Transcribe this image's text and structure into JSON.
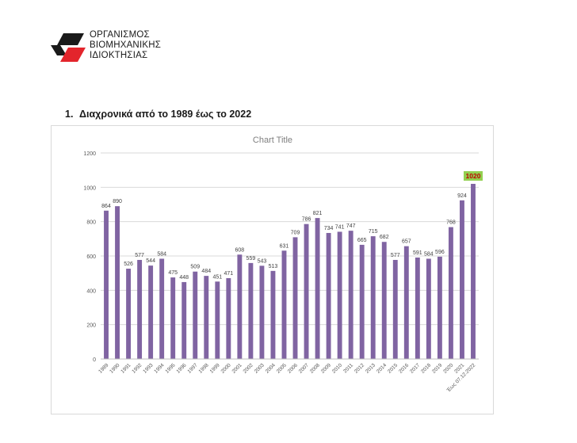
{
  "logo": {
    "lines": [
      "ΟΡΓΑΝΙΣΜΟΣ",
      "ΒΙΟΜΗΧΑΝΙΚΗΣ",
      "ΙΔΙΟΚΤΗΣΙΑΣ"
    ],
    "colors": {
      "red": "#e3252c",
      "black": "#1a1a1a"
    }
  },
  "section": {
    "number": "1.",
    "heading": "Διαχρονικά από το 1989 έως το 2022"
  },
  "chart_data": {
    "type": "bar",
    "title": "Chart Title",
    "xlabel": "",
    "ylabel": "",
    "ylim": [
      0,
      1200
    ],
    "yticks": [
      0,
      200,
      400,
      600,
      800,
      1000,
      1200
    ],
    "grid": true,
    "legend": "none",
    "bar_color": "#8064a2",
    "highlight": {
      "index": 33,
      "label_fill": "#92d050",
      "label_color": "#c00000"
    },
    "categories": [
      "1989",
      "1990",
      "1991",
      "1992",
      "1993",
      "1994",
      "1995",
      "1996",
      "1997",
      "1998",
      "1999",
      "2000",
      "2001",
      "2002",
      "2003",
      "2004",
      "2005",
      "2006",
      "2007",
      "2008",
      "2009",
      "2010",
      "2011",
      "2012",
      "2013",
      "2014",
      "2015",
      "2016",
      "2017",
      "2018",
      "2019",
      "2020",
      "2021",
      "Έως 07.12.2022"
    ],
    "values": [
      864,
      890,
      526,
      577,
      544,
      584,
      475,
      448,
      509,
      484,
      451,
      471,
      608,
      559,
      543,
      513,
      631,
      709,
      786,
      821,
      734,
      741,
      747,
      665,
      715,
      682,
      577,
      657,
      591,
      584,
      596,
      768,
      924,
      1020
    ]
  }
}
